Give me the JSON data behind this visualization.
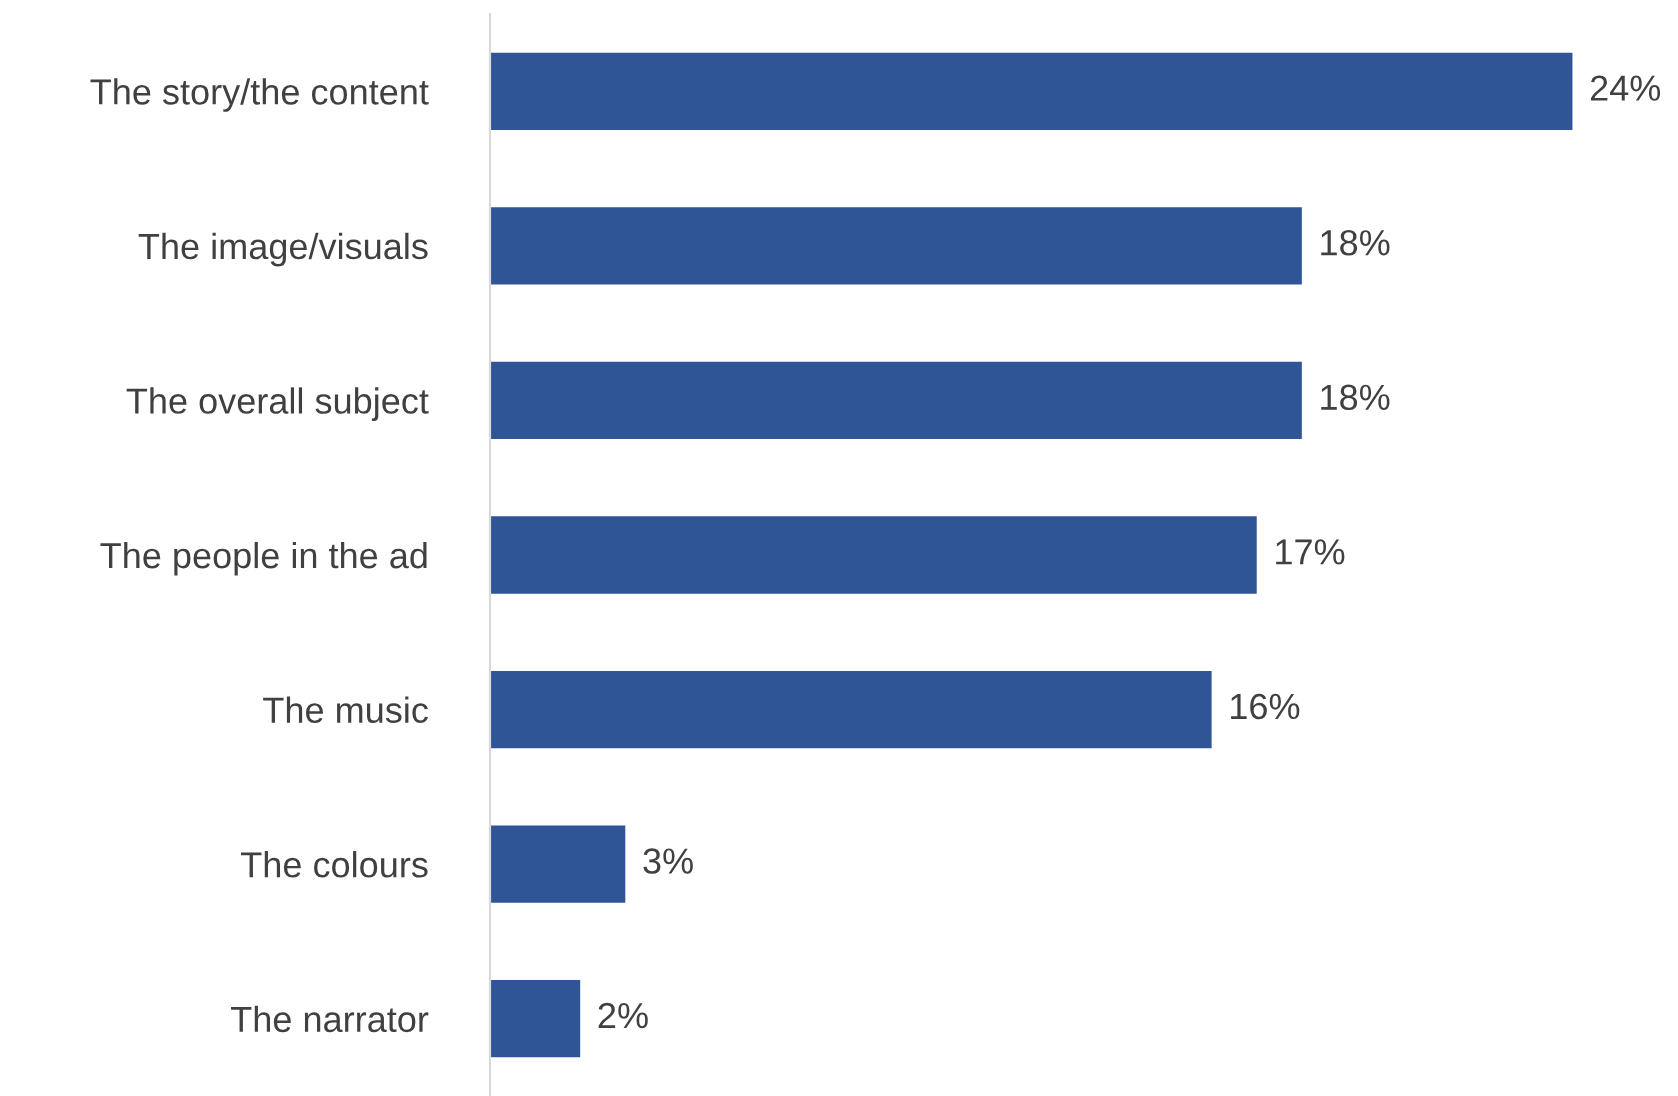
{
  "chart_data": {
    "type": "bar",
    "orientation": "horizontal",
    "categories": [
      "The story/the content",
      "The image/visuals",
      "The overall subject",
      "The people in the ad",
      "The music",
      "The colours",
      "The narrator"
    ],
    "values": [
      24,
      18,
      18,
      17,
      16,
      3,
      2
    ],
    "value_labels": [
      "24%",
      "18%",
      "18%",
      "17%",
      "16%",
      "3%",
      "2%"
    ],
    "color": "#2f5597",
    "grid": false,
    "legend": false
  }
}
